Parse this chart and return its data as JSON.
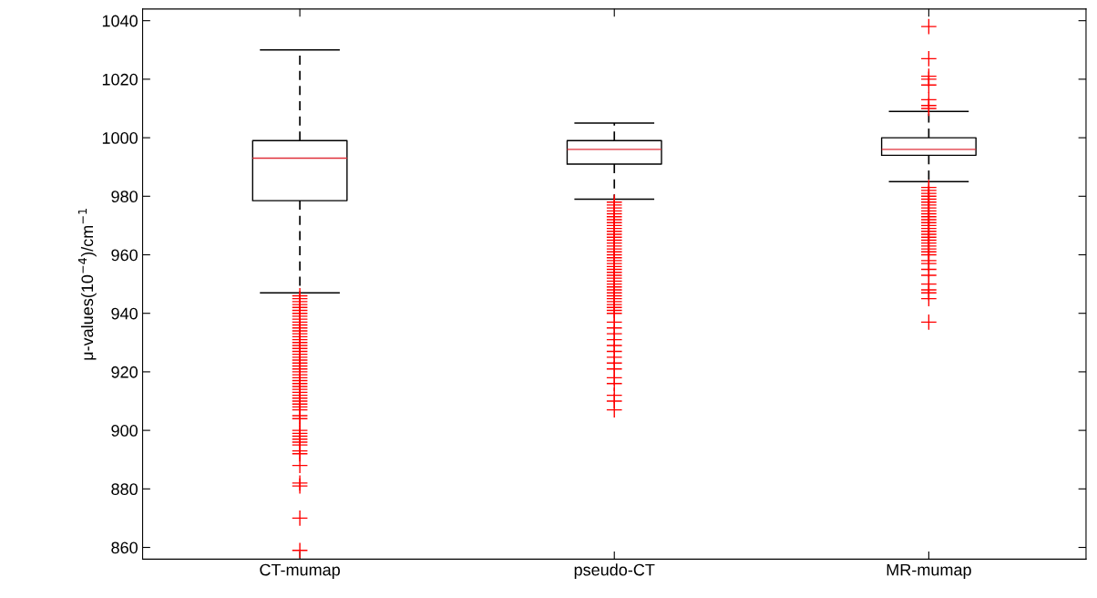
{
  "chart_data": {
    "type": "box",
    "categories": [
      "CT-mumap",
      "pseudo-CT",
      "MR-mumap"
    ],
    "ylabel": "μ-values(10$^{−4}$)/cm$^{−1}$",
    "ylim": [
      856,
      1044
    ],
    "yticks": [
      860,
      880,
      900,
      920,
      940,
      960,
      980,
      1000,
      1020,
      1040
    ],
    "color": "#000000",
    "marker": "cross",
    "grid": false,
    "boxes": [
      {
        "low": 947,
        "q1": 978.5,
        "median": 993,
        "q3": 999,
        "high": 1030,
        "outliers": [
          946,
          945,
          944,
          943,
          942,
          941,
          940,
          939,
          938,
          937,
          936,
          935,
          934,
          933,
          932,
          931,
          930,
          929,
          928,
          927,
          926,
          925,
          924,
          923,
          922,
          921,
          920,
          919,
          918,
          917,
          916,
          915,
          914,
          913,
          912,
          911,
          910,
          909,
          908,
          907,
          905,
          904,
          900,
          899,
          898,
          897,
          896,
          895,
          893,
          892,
          888,
          882,
          881,
          870,
          859
        ]
      },
      {
        "low": 979,
        "q1": 991,
        "median": 996,
        "q3": 999,
        "high": 1005,
        "outliers": [
          978,
          977,
          976,
          975,
          974,
          973,
          972,
          971,
          970,
          969,
          968,
          967,
          966,
          965,
          964,
          963,
          962,
          961,
          960,
          959,
          958,
          957,
          956,
          955,
          954,
          953,
          952,
          951,
          950,
          949,
          948,
          947,
          946,
          945,
          944,
          943,
          942,
          941,
          940,
          937,
          935,
          933,
          931,
          929,
          927,
          925,
          923,
          921,
          918,
          916,
          912,
          910,
          907
        ]
      },
      {
        "low": 985,
        "q1": 994,
        "median": 996,
        "q3": 1000,
        "high": 1009,
        "outliers": [
          1038,
          1027,
          1021,
          1020,
          1018,
          1013,
          1011,
          1010,
          983,
          982,
          981,
          980,
          979,
          978,
          977,
          976,
          975,
          974,
          973,
          972,
          971,
          970,
          969,
          968,
          967,
          966,
          965,
          964,
          963,
          962,
          961,
          960,
          958,
          957,
          955,
          953,
          950,
          948,
          947,
          945,
          937
        ]
      }
    ]
  }
}
